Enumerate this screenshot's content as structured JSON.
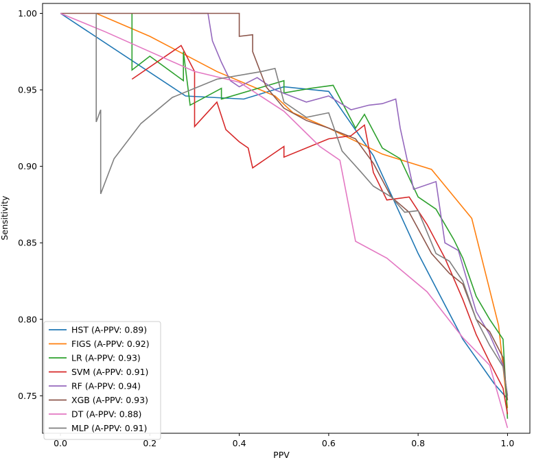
{
  "chart_data": {
    "type": "line",
    "title": "",
    "xlabel": "PPV",
    "ylabel": "Sensitivity",
    "xlim": [
      -0.04,
      1.05
    ],
    "ylim": [
      0.7255,
      1.0065
    ],
    "xticks": [
      0.0,
      0.2,
      0.4,
      0.6,
      0.8,
      1.0
    ],
    "xtick_labels": [
      "0.0",
      "0.2",
      "0.4",
      "0.6",
      "0.8",
      "1.0"
    ],
    "yticks": [
      0.75,
      0.8,
      0.85,
      0.9,
      0.95,
      1.0
    ],
    "ytick_labels": [
      "0.75",
      "0.80",
      "0.85",
      "0.90",
      "0.95",
      "1.00"
    ],
    "grid": false,
    "legend_position": "lower-left",
    "series": [
      {
        "name": "HST (A-PPV: 0.89)",
        "color": "#1f77b4",
        "points": [
          [
            0.0,
            1.0
          ],
          [
            0.28,
            0.946
          ],
          [
            0.41,
            0.944
          ],
          [
            0.5,
            0.952
          ],
          [
            0.6,
            0.949
          ],
          [
            0.7,
            0.907
          ],
          [
            0.8,
            0.843
          ],
          [
            0.9,
            0.787
          ],
          [
            0.97,
            0.758
          ],
          [
            1.0,
            0.748
          ]
        ]
      },
      {
        "name": "FIGS (A-PPV: 0.92)",
        "color": "#ff7f0e",
        "points": [
          [
            0.08,
            1.0
          ],
          [
            0.2,
            0.985
          ],
          [
            0.35,
            0.962
          ],
          [
            0.48,
            0.946
          ],
          [
            0.52,
            0.935
          ],
          [
            0.6,
            0.925
          ],
          [
            0.72,
            0.908
          ],
          [
            0.83,
            0.898
          ],
          [
            0.92,
            0.866
          ],
          [
            0.98,
            0.796
          ],
          [
            1.0,
            0.742
          ]
        ]
      },
      {
        "name": "LR (A-PPV: 0.93)",
        "color": "#2ca02c",
        "points": [
          [
            0.16,
            1.0
          ],
          [
            0.16,
            0.963
          ],
          [
            0.2,
            0.972
          ],
          [
            0.275,
            0.956
          ],
          [
            0.275,
            0.975
          ],
          [
            0.29,
            0.94
          ],
          [
            0.36,
            0.951
          ],
          [
            0.36,
            0.944
          ],
          [
            0.5,
            0.956
          ],
          [
            0.5,
            0.948
          ],
          [
            0.56,
            0.951
          ],
          [
            0.61,
            0.953
          ],
          [
            0.66,
            0.925
          ],
          [
            0.68,
            0.934
          ],
          [
            0.72,
            0.912
          ],
          [
            0.76,
            0.905
          ],
          [
            0.8,
            0.88
          ],
          [
            0.84,
            0.872
          ],
          [
            0.88,
            0.852
          ],
          [
            0.9,
            0.84
          ],
          [
            0.93,
            0.815
          ],
          [
            0.96,
            0.8
          ],
          [
            0.99,
            0.787
          ],
          [
            1.0,
            0.735
          ]
        ]
      },
      {
        "name": "SVM (A-PPV: 0.91)",
        "color": "#d62728",
        "points": [
          [
            0.16,
            0.957
          ],
          [
            0.27,
            0.979
          ],
          [
            0.3,
            0.962
          ],
          [
            0.3,
            0.926
          ],
          [
            0.35,
            0.942
          ],
          [
            0.37,
            0.924
          ],
          [
            0.4,
            0.916
          ],
          [
            0.42,
            0.912
          ],
          [
            0.43,
            0.899
          ],
          [
            0.5,
            0.913
          ],
          [
            0.5,
            0.906
          ],
          [
            0.6,
            0.918
          ],
          [
            0.65,
            0.92
          ],
          [
            0.68,
            0.927
          ],
          [
            0.7,
            0.896
          ],
          [
            0.73,
            0.878
          ],
          [
            0.78,
            0.88
          ],
          [
            0.82,
            0.862
          ],
          [
            0.86,
            0.84
          ],
          [
            0.9,
            0.813
          ],
          [
            0.93,
            0.79
          ],
          [
            0.96,
            0.772
          ],
          [
            0.99,
            0.755
          ],
          [
            1.0,
            0.738
          ]
        ]
      },
      {
        "name": "RF (A-PPV: 0.94)",
        "color": "#9467bd",
        "points": [
          [
            0.29,
            1.0
          ],
          [
            0.33,
            1.0
          ],
          [
            0.34,
            0.982
          ],
          [
            0.36,
            0.968
          ],
          [
            0.38,
            0.956
          ],
          [
            0.4,
            0.952
          ],
          [
            0.44,
            0.958
          ],
          [
            0.48,
            0.95
          ],
          [
            0.55,
            0.942
          ],
          [
            0.6,
            0.946
          ],
          [
            0.65,
            0.937
          ],
          [
            0.69,
            0.94
          ],
          [
            0.72,
            0.941
          ],
          [
            0.75,
            0.944
          ],
          [
            0.76,
            0.925
          ],
          [
            0.79,
            0.885
          ],
          [
            0.84,
            0.89
          ],
          [
            0.86,
            0.85
          ],
          [
            0.89,
            0.845
          ],
          [
            0.93,
            0.805
          ],
          [
            0.96,
            0.79
          ],
          [
            0.99,
            0.77
          ],
          [
            1.0,
            0.75
          ]
        ]
      },
      {
        "name": "XGB (A-PPV: 0.93)",
        "color": "#8c564b",
        "points": [
          [
            0.0,
            1.0
          ],
          [
            0.4,
            1.0
          ],
          [
            0.4,
            0.985
          ],
          [
            0.43,
            0.986
          ],
          [
            0.43,
            0.975
          ],
          [
            0.46,
            0.952
          ],
          [
            0.5,
            0.938
          ],
          [
            0.55,
            0.93
          ],
          [
            0.6,
            0.925
          ],
          [
            0.66,
            0.918
          ],
          [
            0.7,
            0.902
          ],
          [
            0.74,
            0.88
          ],
          [
            0.78,
            0.87
          ],
          [
            0.83,
            0.843
          ],
          [
            0.87,
            0.83
          ],
          [
            0.9,
            0.823
          ],
          [
            0.93,
            0.8
          ],
          [
            0.96,
            0.792
          ],
          [
            0.99,
            0.775
          ],
          [
            1.0,
            0.747
          ]
        ]
      },
      {
        "name": "DT (A-PPV: 0.88)",
        "color": "#e377c2",
        "points": [
          [
            0.0,
            1.0
          ],
          [
            0.1,
            0.988
          ],
          [
            0.2,
            0.975
          ],
          [
            0.3,
            0.962
          ],
          [
            0.4,
            0.955
          ],
          [
            0.5,
            0.936
          ],
          [
            0.58,
            0.913
          ],
          [
            0.625,
            0.904
          ],
          [
            0.66,
            0.851
          ],
          [
            0.73,
            0.84
          ],
          [
            0.82,
            0.818
          ],
          [
            0.9,
            0.788
          ],
          [
            0.96,
            0.77
          ],
          [
            1.0,
            0.729
          ]
        ]
      },
      {
        "name": "MLP (A-PPV: 0.91)",
        "color": "#7f7f7f",
        "points": [
          [
            0.08,
            1.0
          ],
          [
            0.08,
            0.929
          ],
          [
            0.09,
            0.937
          ],
          [
            0.09,
            0.882
          ],
          [
            0.12,
            0.905
          ],
          [
            0.18,
            0.928
          ],
          [
            0.25,
            0.945
          ],
          [
            0.35,
            0.957
          ],
          [
            0.45,
            0.962
          ],
          [
            0.48,
            0.964
          ],
          [
            0.5,
            0.942
          ],
          [
            0.55,
            0.932
          ],
          [
            0.6,
            0.935
          ],
          [
            0.63,
            0.91
          ],
          [
            0.67,
            0.897
          ],
          [
            0.7,
            0.887
          ],
          [
            0.74,
            0.88
          ],
          [
            0.77,
            0.87
          ],
          [
            0.8,
            0.871
          ],
          [
            0.84,
            0.843
          ],
          [
            0.87,
            0.838
          ],
          [
            0.9,
            0.825
          ],
          [
            0.93,
            0.8
          ],
          [
            0.96,
            0.783
          ],
          [
            0.99,
            0.769
          ],
          [
            1.0,
            0.75
          ]
        ]
      }
    ]
  }
}
